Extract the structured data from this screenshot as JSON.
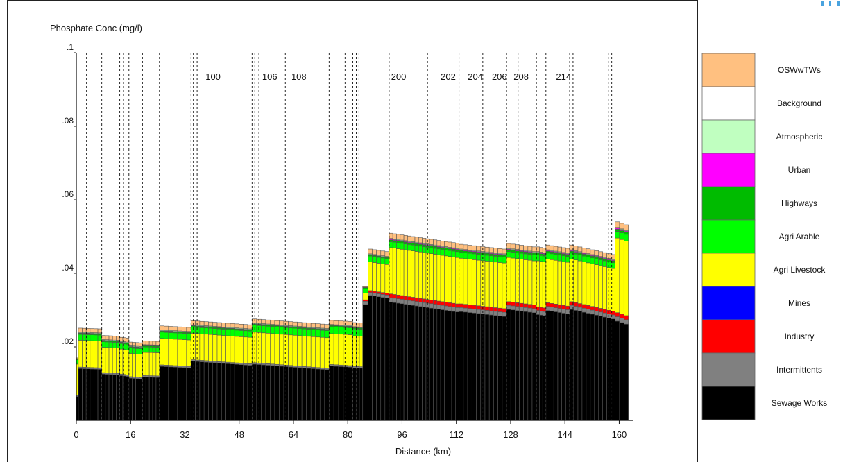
{
  "chart_data": {
    "type": "bar",
    "stacked": true,
    "title": "",
    "ylabel": "Phosphate Conc (mg/l)",
    "xlabel": "Distance (km)",
    "xlim": [
      0,
      164
    ],
    "ylim": [
      0,
      0.1
    ],
    "x_ticks": [
      0,
      16,
      32,
      48,
      64,
      80,
      96,
      112,
      128,
      144,
      160
    ],
    "y_ticks": [
      {
        "value": 0.1,
        "label": ".1"
      },
      {
        "value": 0.08,
        "label": ".08"
      },
      {
        "value": 0.06,
        "label": ".06"
      },
      {
        "value": 0.04,
        "label": ".04"
      },
      {
        "value": 0.02,
        "label": ".02"
      }
    ],
    "grid": false,
    "legend_position": "right",
    "series": [
      {
        "name": "Sewage Works",
        "color": "#000000"
      },
      {
        "name": "Intermittents",
        "color": "#808080"
      },
      {
        "name": "Industry",
        "color": "#ff0000"
      },
      {
        "name": "Mines",
        "color": "#0000ff"
      },
      {
        "name": "Agri Livestock",
        "color": "#ffff00"
      },
      {
        "name": "Agri Arable",
        "color": "#00ff00"
      },
      {
        "name": "Highways",
        "color": "#00bb00"
      },
      {
        "name": "Urban",
        "color": "#ff00ff"
      },
      {
        "name": "Atmospheric",
        "color": "#c0ffc0"
      },
      {
        "name": "Background",
        "color": "#ffffff"
      },
      {
        "name": "OSWwTWs",
        "color": "#ffc080"
      }
    ],
    "segments": [
      {
        "start": 0,
        "end": 0.6,
        "bars": 1,
        "sewage": 0.0065,
        "sewage_end": 0.0065,
        "intermittent": 0.0003,
        "industry": 0,
        "livestock": 0.0085,
        "arable": 0.0012,
        "highways": 0.0002,
        "urban": 0,
        "atmos": 0.0001,
        "background": 0,
        "osw": 0.0002
      },
      {
        "start": 0.6,
        "end": 7.5,
        "bars": 6,
        "sewage": 0.0141,
        "sewage_end": 0.0139,
        "intermittent": 0.0004,
        "industry": 0,
        "livestock": 0.0073,
        "arable": 0.0016,
        "highways": 0.0003,
        "urban": 0.0001,
        "atmos": 0.0002,
        "background": 0,
        "osw": 0.0011
      },
      {
        "start": 7.5,
        "end": 12.8,
        "bars": 5,
        "sewage": 0.0126,
        "sewage_end": 0.0124,
        "intermittent": 0.0004,
        "industry": 0,
        "livestock": 0.0069,
        "arable": 0.0015,
        "highways": 0.0003,
        "urban": 0.0001,
        "atmos": 0.0002,
        "background": 0,
        "osw": 0.0011
      },
      {
        "start": 12.8,
        "end": 15.5,
        "bars": 3,
        "sewage": 0.0122,
        "sewage_end": 0.012,
        "intermittent": 0.0004,
        "industry": 0,
        "livestock": 0.0068,
        "arable": 0.0015,
        "highways": 0.0003,
        "urban": 0.0001,
        "atmos": 0.0002,
        "background": 0,
        "osw": 0.0011
      },
      {
        "start": 15.5,
        "end": 19.5,
        "bars": 4,
        "sewage": 0.0115,
        "sewage_end": 0.0113,
        "intermittent": 0.0004,
        "industry": 0,
        "livestock": 0.0063,
        "arable": 0.0015,
        "highways": 0.0003,
        "urban": 0.0001,
        "atmos": 0.0002,
        "background": 0,
        "osw": 0.001
      },
      {
        "start": 19.5,
        "end": 24.5,
        "bars": 5,
        "sewage": 0.0118,
        "sewage_end": 0.0117,
        "intermittent": 0.0004,
        "industry": 0,
        "livestock": 0.0063,
        "arable": 0.0015,
        "highways": 0.0003,
        "urban": 0.0001,
        "atmos": 0.0002,
        "background": 0,
        "osw": 0.001
      },
      {
        "start": 24.5,
        "end": 33.8,
        "bars": 7,
        "sewage": 0.0147,
        "sewage_end": 0.0143,
        "intermittent": 0.0004,
        "industry": 0,
        "livestock": 0.0072,
        "arable": 0.0017,
        "highways": 0.0003,
        "urban": 0.0001,
        "atmos": 0.0002,
        "background": 0,
        "osw": 0.0011
      },
      {
        "start": 33.8,
        "end": 51.8,
        "bars": 14,
        "sewage": 0.0161,
        "sewage_end": 0.015,
        "intermittent": 0.0004,
        "industry": 0,
        "livestock": 0.0072,
        "arable": 0.0017,
        "highways": 0.0003,
        "urban": 0.0001,
        "atmos": 0.0002,
        "background": 0,
        "osw": 0.0011
      },
      {
        "start": 51.8,
        "end": 74.5,
        "bars": 17,
        "sewage": 0.0153,
        "sewage_end": 0.0138,
        "intermittent": 0.0004,
        "industry": 0,
        "livestock": 0.0083,
        "arable": 0.0019,
        "highways": 0.0003,
        "urban": 0.0001,
        "atmos": 0.0002,
        "background": 0,
        "osw": 0.0011
      },
      {
        "start": 74.5,
        "end": 81.5,
        "bars": 5,
        "sewage": 0.0148,
        "sewage_end": 0.0145,
        "intermittent": 0.0004,
        "industry": 0,
        "livestock": 0.0084,
        "arable": 0.0019,
        "highways": 0.0003,
        "urban": 0.0001,
        "atmos": 0.0002,
        "background": 0,
        "osw": 0.0011
      },
      {
        "start": 81.5,
        "end": 84.4,
        "bars": 3,
        "sewage": 0.0143,
        "sewage_end": 0.0142,
        "intermittent": 0.0004,
        "industry": 0,
        "livestock": 0.0083,
        "arable": 0.0019,
        "highways": 0.0003,
        "urban": 0.0001,
        "atmos": 0.0002,
        "background": 0,
        "osw": 0.0011
      },
      {
        "start": 84.4,
        "end": 86.0,
        "bars": 1,
        "sewage": 0.0315,
        "sewage_end": 0.0315,
        "intermittent": 0.0009,
        "industry": 0.0004,
        "livestock": 0.0018,
        "arable": 0.0012,
        "highways": 0.0003,
        "urban": 0.0001,
        "atmos": 0.0001,
        "background": 0,
        "osw": 0.0002
      },
      {
        "start": 86.0,
        "end": 92.2,
        "bars": 5,
        "sewage": 0.034,
        "sewage_end": 0.0333,
        "intermittent": 0.0008,
        "industry": 0.0005,
        "livestock": 0.0078,
        "arable": 0.0016,
        "highways": 0.0003,
        "urban": 0.0001,
        "atmos": 0.0002,
        "background": 0,
        "osw": 0.0013
      },
      {
        "start": 92.2,
        "end": 112.8,
        "bars": 19,
        "sewage": 0.0322,
        "sewage_end": 0.0295,
        "intermittent": 0.0012,
        "industry": 0.001,
        "livestock": 0.0126,
        "arable": 0.0016,
        "highways": 0.0005,
        "urban": 0.0002,
        "atmos": 0.0002,
        "background": 0,
        "osw": 0.0014
      },
      {
        "start": 112.8,
        "end": 126.8,
        "bars": 11,
        "sewage": 0.0296,
        "sewage_end": 0.0283,
        "intermittent": 0.0011,
        "industry": 0.001,
        "livestock": 0.0124,
        "arable": 0.0016,
        "highways": 0.0005,
        "urban": 0.0002,
        "atmos": 0.0002,
        "background": 0,
        "osw": 0.0013
      },
      {
        "start": 126.8,
        "end": 135.6,
        "bars": 7,
        "sewage": 0.0302,
        "sewage_end": 0.0293,
        "intermittent": 0.0011,
        "industry": 0.001,
        "livestock": 0.012,
        "arable": 0.0016,
        "highways": 0.0005,
        "urban": 0.0002,
        "atmos": 0.0002,
        "background": 0,
        "osw": 0.0013
      },
      {
        "start": 135.6,
        "end": 138.4,
        "bars": 3,
        "sewage": 0.0288,
        "sewage_end": 0.0285,
        "intermittent": 0.0011,
        "industry": 0.001,
        "livestock": 0.0125,
        "arable": 0.0016,
        "highways": 0.0005,
        "urban": 0.0002,
        "atmos": 0.0002,
        "background": 0,
        "osw": 0.0013
      },
      {
        "start": 138.4,
        "end": 145.4,
        "bars": 6,
        "sewage": 0.0299,
        "sewage_end": 0.029,
        "intermittent": 0.0011,
        "industry": 0.001,
        "livestock": 0.0119,
        "arable": 0.0016,
        "highways": 0.0005,
        "urban": 0.0002,
        "atmos": 0.0002,
        "background": 0,
        "osw": 0.0013
      },
      {
        "start": 145.4,
        "end": 158.8,
        "bars": 11,
        "sewage": 0.0302,
        "sewage_end": 0.0276,
        "intermittent": 0.0011,
        "industry": 0.001,
        "livestock": 0.0116,
        "arable": 0.0016,
        "highways": 0.0005,
        "urban": 0.0002,
        "atmos": 0.0002,
        "background": 0,
        "osw": 0.0013
      },
      {
        "start": 158.8,
        "end": 162.7,
        "bars": 3,
        "sewage": 0.027,
        "sewage_end": 0.0262,
        "intermittent": 0.0012,
        "industry": 0.0011,
        "livestock": 0.0203,
        "arable": 0.0018,
        "highways": 0.0006,
        "urban": 0.0003,
        "atmos": 0.0002,
        "background": 0,
        "osw": 0.0015
      }
    ],
    "boundaries": [
      3.0,
      7.5,
      12.8,
      13.9,
      15.5,
      19.5,
      24.5,
      33.8,
      34.5,
      35.6,
      51.8,
      52.6,
      53.8,
      61.6,
      74.5,
      79.2,
      81.5,
      82.5,
      83.3,
      92.2,
      103.5,
      112.8,
      119.8,
      126.8,
      130.2,
      135.6,
      138.4,
      145.4,
      146.4,
      156.8,
      157.8
    ],
    "reach_labels": [
      {
        "label": "100",
        "x": 40.3
      },
      {
        "label": "106",
        "x": 57.0
      },
      {
        "label": "108",
        "x": 65.6
      },
      {
        "label": "200",
        "x": 95.0
      },
      {
        "label": "202",
        "x": 109.6
      },
      {
        "label": "204",
        "x": 117.6
      },
      {
        "label": "206",
        "x": 124.7
      },
      {
        "label": "208",
        "x": 131.1
      },
      {
        "label": "214",
        "x": 143.6
      }
    ]
  },
  "icons": {
    "corner": "corner-mark-icon"
  }
}
